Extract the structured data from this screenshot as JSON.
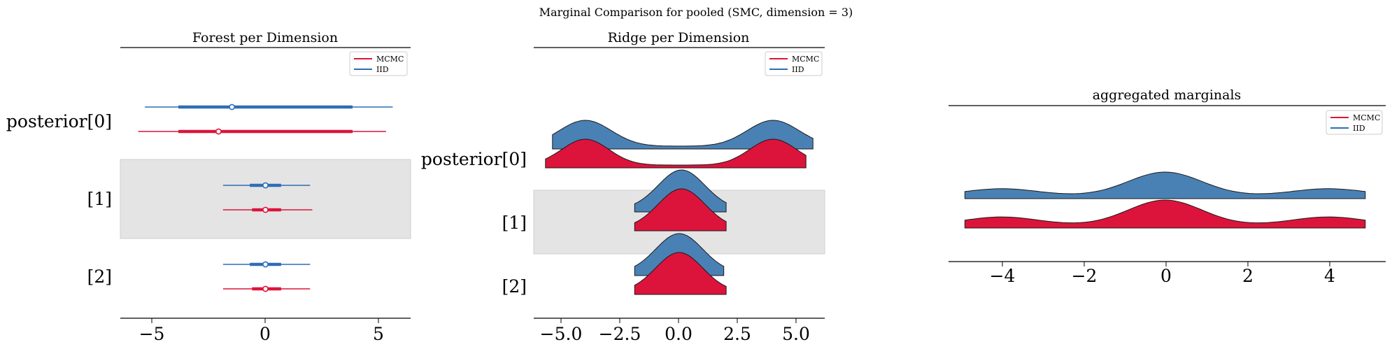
{
  "suptitle": "Marginal Comparison for pooled (SMC, dimension = 3)",
  "colors": {
    "mcmc": "#dc143c",
    "iid": "#3a78b0",
    "iid_line": "#2f6db5",
    "band": "#e4e4e4",
    "iid_fill": "#4a81b4",
    "mcmc_fill": "#dc143c"
  },
  "legend_labels": [
    "MCMC",
    "IID"
  ],
  "y_labels": [
    "posterior[0]",
    "[1]",
    "[2]"
  ],
  "chart_data": [
    {
      "type": "forest",
      "title": "Forest per Dimension",
      "xlim": [
        -6.5,
        6.5
      ],
      "xticks": [
        -5,
        0,
        5
      ],
      "xtick_labels": [
        "−5",
        "0",
        "5"
      ],
      "legend": "top-right",
      "rows": [
        {
          "label": "posterior[0]",
          "iid": {
            "hdi": [
              -5.4,
              5.7
            ],
            "iqr": [
              -3.9,
              3.9
            ],
            "median": -1.5
          },
          "mcmc": {
            "hdi": [
              -5.7,
              5.4
            ],
            "iqr": [
              -3.9,
              3.9
            ],
            "median": -2.1
          }
        },
        {
          "label": "[1]",
          "iid": {
            "hdi": [
              -1.9,
              2.0
            ],
            "iqr": [
              -0.7,
              0.7
            ],
            "median": 0.0
          },
          "mcmc": {
            "hdi": [
              -1.9,
              2.1
            ],
            "iqr": [
              -0.6,
              0.7
            ],
            "median": 0.0
          }
        },
        {
          "label": "[2]",
          "iid": {
            "hdi": [
              -1.9,
              2.0
            ],
            "iqr": [
              -0.7,
              0.7
            ],
            "median": 0.0
          },
          "mcmc": {
            "hdi": [
              -1.9,
              2.0
            ],
            "iqr": [
              -0.6,
              0.7
            ],
            "median": 0.0
          }
        }
      ]
    },
    {
      "type": "ridge",
      "title": "Ridge per Dimension",
      "xlim": [
        -6.2,
        6.2
      ],
      "xticks": [
        -5,
        -2.5,
        0,
        2.5,
        5
      ],
      "xtick_labels": [
        "−5.0",
        "−2.5",
        "0.0",
        "2.5",
        "5.0"
      ],
      "legend": "top-right",
      "rows": [
        {
          "label": "posterior[0]",
          "iid": {
            "range": [
              -5.4,
              5.7
            ],
            "modes": [
              [
                -4.0,
                1.1,
                1.0
              ],
              [
                4.0,
                1.1,
                1.0
              ]
            ]
          },
          "mcmc": {
            "range": [
              -5.7,
              5.4
            ],
            "modes": [
              [
                -4.0,
                1.0,
                1.0
              ],
              [
                4.0,
                1.0,
                1.0
              ]
            ]
          }
        },
        {
          "label": "[1]",
          "iid": {
            "range": [
              -1.9,
              2.0
            ],
            "modes": [
              [
                0.1,
                1.0,
                1.0
              ]
            ]
          },
          "mcmc": {
            "range": [
              -1.9,
              2.0
            ],
            "modes": [
              [
                0.1,
                1.0,
                1.0
              ]
            ]
          }
        },
        {
          "label": "[2]",
          "iid": {
            "range": [
              -1.9,
              1.9
            ],
            "modes": [
              [
                0.0,
                1.0,
                1.0
              ]
            ]
          },
          "mcmc": {
            "range": [
              -1.9,
              2.0
            ],
            "modes": [
              [
                0.0,
                1.0,
                1.0
              ]
            ]
          }
        }
      ]
    },
    {
      "type": "ridge",
      "title": "aggregated marginals",
      "xlim": [
        -5.3,
        5.4
      ],
      "xticks": [
        -4,
        -2,
        0,
        2,
        4
      ],
      "xtick_labels": [
        "−4",
        "−2",
        "0",
        "2",
        "4"
      ],
      "legend": "top-right",
      "rows": [
        {
          "label": "",
          "iid": {
            "range": [
              -4.9,
              4.9
            ],
            "modes": [
              [
                -4.0,
                0.9,
                0.3
              ],
              [
                0.0,
                0.9,
                1.0
              ],
              [
                4.0,
                0.9,
                0.3
              ]
            ]
          },
          "mcmc": {
            "range": [
              -4.9,
              4.9
            ],
            "modes": [
              [
                -4.0,
                0.9,
                0.33
              ],
              [
                0.0,
                0.9,
                1.0
              ],
              [
                4.0,
                0.9,
                0.33
              ]
            ]
          }
        }
      ]
    }
  ]
}
